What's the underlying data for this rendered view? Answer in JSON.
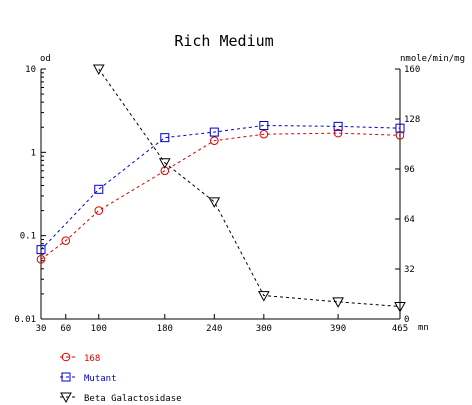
{
  "chart_data": {
    "type": "line",
    "title": "Rich Medium",
    "left_axis": {
      "label": "od",
      "scale": "log",
      "range": [
        0.01,
        10
      ],
      "ticks": [
        {
          "value": 0.01,
          "label": "0.01"
        },
        {
          "value": 0.1,
          "label": "0.1"
        },
        {
          "value": 1,
          "label": "1"
        },
        {
          "value": 10,
          "label": "10"
        }
      ]
    },
    "right_axis": {
      "label": "nmole/min/mg",
      "scale": "linear",
      "range": [
        0,
        160
      ],
      "ticks": [
        {
          "value": 0,
          "label": "0"
        },
        {
          "value": 32,
          "label": "32"
        },
        {
          "value": 64,
          "label": "64"
        },
        {
          "value": 96,
          "label": "96"
        },
        {
          "value": 128,
          "label": "128"
        },
        {
          "value": 160,
          "label": "160"
        }
      ]
    },
    "x_axis": {
      "label": "mn",
      "range": [
        30,
        465
      ],
      "ticks": [
        {
          "value": 30,
          "label": "30"
        },
        {
          "value": 60,
          "label": "60"
        },
        {
          "value": 100,
          "label": "100"
        },
        {
          "value": 180,
          "label": "180"
        },
        {
          "value": 240,
          "label": "240"
        },
        {
          "value": 300,
          "label": "300"
        },
        {
          "value": 390,
          "label": "390"
        },
        {
          "value": 465,
          "label": "465"
        }
      ]
    },
    "grid": false,
    "legend_position": "bottom-left",
    "series": [
      {
        "name": "168",
        "axis": "left",
        "marker": "circle",
        "color": "#dd0000",
        "x": [
          30,
          60,
          100,
          180,
          240,
          300,
          390,
          465
        ],
        "y": [
          0.052,
          0.087,
          0.2,
          0.6,
          1.38,
          1.65,
          1.7,
          1.6
        ]
      },
      {
        "name": "Mutant",
        "axis": "left",
        "marker": "square",
        "color": "#0000cc",
        "x": [
          30,
          100,
          180,
          240,
          300,
          390,
          465
        ],
        "y": [
          0.068,
          0.36,
          1.5,
          1.75,
          2.1,
          2.05,
          1.95
        ]
      },
      {
        "name": "Beta Galactosidase",
        "axis": "right",
        "marker": "triangle-down",
        "color": "#000000",
        "x": [
          100,
          180,
          240,
          300,
          390,
          465
        ],
        "y": [
          160,
          100,
          75,
          15,
          11,
          8
        ]
      }
    ]
  }
}
